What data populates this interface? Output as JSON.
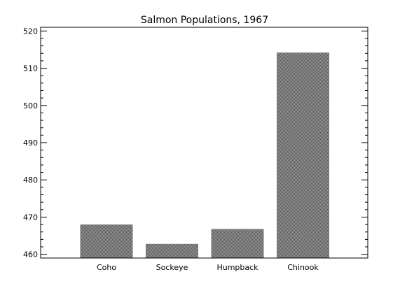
{
  "chart_data": {
    "type": "bar",
    "title": "Salmon Populations, 1967",
    "xlabel": "",
    "ylabel": "",
    "categories": [
      "Coho",
      "Sockeye",
      "Humpback",
      "Chinook"
    ],
    "values": [
      468,
      462.8,
      466.8,
      514.2
    ],
    "ylim": [
      459,
      521
    ],
    "yticks": [
      460,
      470,
      480,
      490,
      500,
      510,
      520
    ],
    "grid": false,
    "bar_color": "#7f7f7f"
  }
}
